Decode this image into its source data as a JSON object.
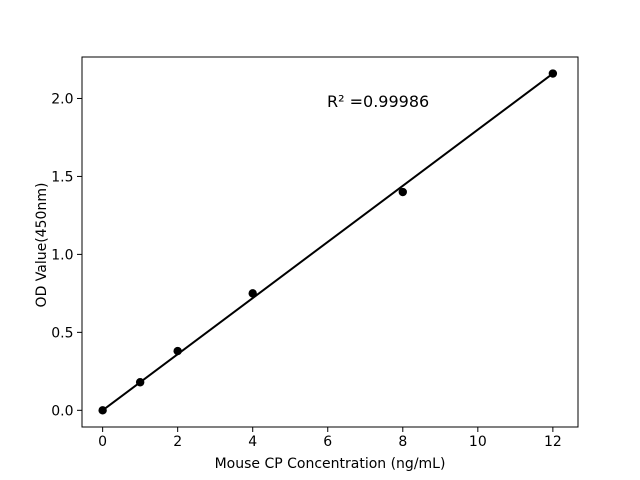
{
  "chart_data": {
    "type": "scatter",
    "title": "",
    "xlabel": "Mouse CP Concentration (ng/mL)",
    "ylabel": "OD Value(450nm)",
    "annotation": "R² =0.99986",
    "r_squared_value": 0.99986,
    "x": [
      0,
      1,
      2,
      4,
      8,
      12
    ],
    "y": [
      0.0,
      0.18,
      0.38,
      0.75,
      1.4,
      2.16
    ],
    "fit_line": {
      "x1": 0,
      "y1": 0.0,
      "x2": 12,
      "y2": 2.16
    },
    "x_ticks": [
      0,
      2,
      4,
      6,
      8,
      10,
      12
    ],
    "x_tick_labels": [
      "0",
      "2",
      "4",
      "6",
      "8",
      "10",
      "12"
    ],
    "y_ticks": [
      0.0,
      0.5,
      1.0,
      1.5,
      2.0
    ],
    "y_tick_labels": [
      "0.0",
      "0.5",
      "1.0",
      "1.5",
      "2.0"
    ],
    "xlim": [
      -0.55,
      12.67
    ],
    "ylim": [
      -0.107,
      2.266
    ],
    "grid": false,
    "legend": null,
    "colors": {
      "marker": "#000000",
      "line": "#000000",
      "axis": "#000000",
      "tick_text": "#000000",
      "background": "#ffffff"
    }
  }
}
